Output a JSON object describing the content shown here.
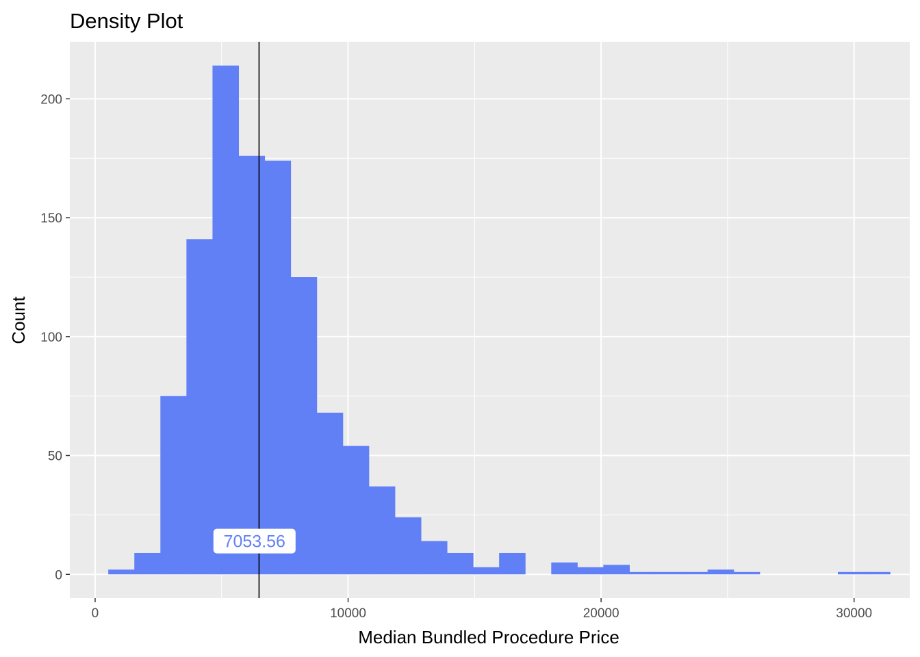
{
  "chart_data": {
    "type": "bar",
    "title": "Density Plot",
    "xlabel": "Median Bundled Procedure Price",
    "ylabel": "Count",
    "xlim": [
      -1000,
      32200
    ],
    "ylim": [
      -10,
      224
    ],
    "x_ticks": [
      0,
      10000,
      20000,
      30000
    ],
    "y_ticks": [
      0,
      50,
      100,
      150,
      200
    ],
    "bin_width": 1030,
    "bins": [
      {
        "start": 520,
        "end": 1550,
        "count": 2
      },
      {
        "start": 1550,
        "end": 2580,
        "count": 9
      },
      {
        "start": 2580,
        "end": 3610,
        "count": 75
      },
      {
        "start": 3610,
        "end": 4640,
        "count": 141
      },
      {
        "start": 4640,
        "end": 5670,
        "count": 214
      },
      {
        "start": 5670,
        "end": 6700,
        "count": 176
      },
      {
        "start": 6700,
        "end": 7730,
        "count": 174
      },
      {
        "start": 7730,
        "end": 8760,
        "count": 125
      },
      {
        "start": 8760,
        "end": 9790,
        "count": 68
      },
      {
        "start": 9790,
        "end": 10820,
        "count": 54
      },
      {
        "start": 10820,
        "end": 11850,
        "count": 37
      },
      {
        "start": 11850,
        "end": 12880,
        "count": 24
      },
      {
        "start": 12880,
        "end": 13910,
        "count": 14
      },
      {
        "start": 13910,
        "end": 14940,
        "count": 9
      },
      {
        "start": 14940,
        "end": 15970,
        "count": 3
      },
      {
        "start": 15970,
        "end": 17000,
        "count": 9
      },
      {
        "start": 17000,
        "end": 18030,
        "count": 0
      },
      {
        "start": 18030,
        "end": 19060,
        "count": 5
      },
      {
        "start": 19060,
        "end": 20090,
        "count": 3
      },
      {
        "start": 20090,
        "end": 21120,
        "count": 4
      },
      {
        "start": 21120,
        "end": 22150,
        "count": 1
      },
      {
        "start": 22150,
        "end": 23180,
        "count": 1
      },
      {
        "start": 23180,
        "end": 24210,
        "count": 1
      },
      {
        "start": 24210,
        "end": 25240,
        "count": 2
      },
      {
        "start": 25240,
        "end": 26270,
        "count": 1
      },
      {
        "start": 26270,
        "end": 27300,
        "count": 0
      },
      {
        "start": 27300,
        "end": 28330,
        "count": 0
      },
      {
        "start": 28330,
        "end": 29360,
        "count": 0
      },
      {
        "start": 29360,
        "end": 30390,
        "count": 1
      },
      {
        "start": 30390,
        "end": 31420,
        "count": 1
      }
    ],
    "vline": {
      "x": 6480
    },
    "annotation": {
      "label": "7053.56",
      "x": 6300,
      "y": 14
    },
    "bar_color": "#6180f5",
    "panel_background": "#ebebeb",
    "grid": true,
    "legend": "none"
  }
}
